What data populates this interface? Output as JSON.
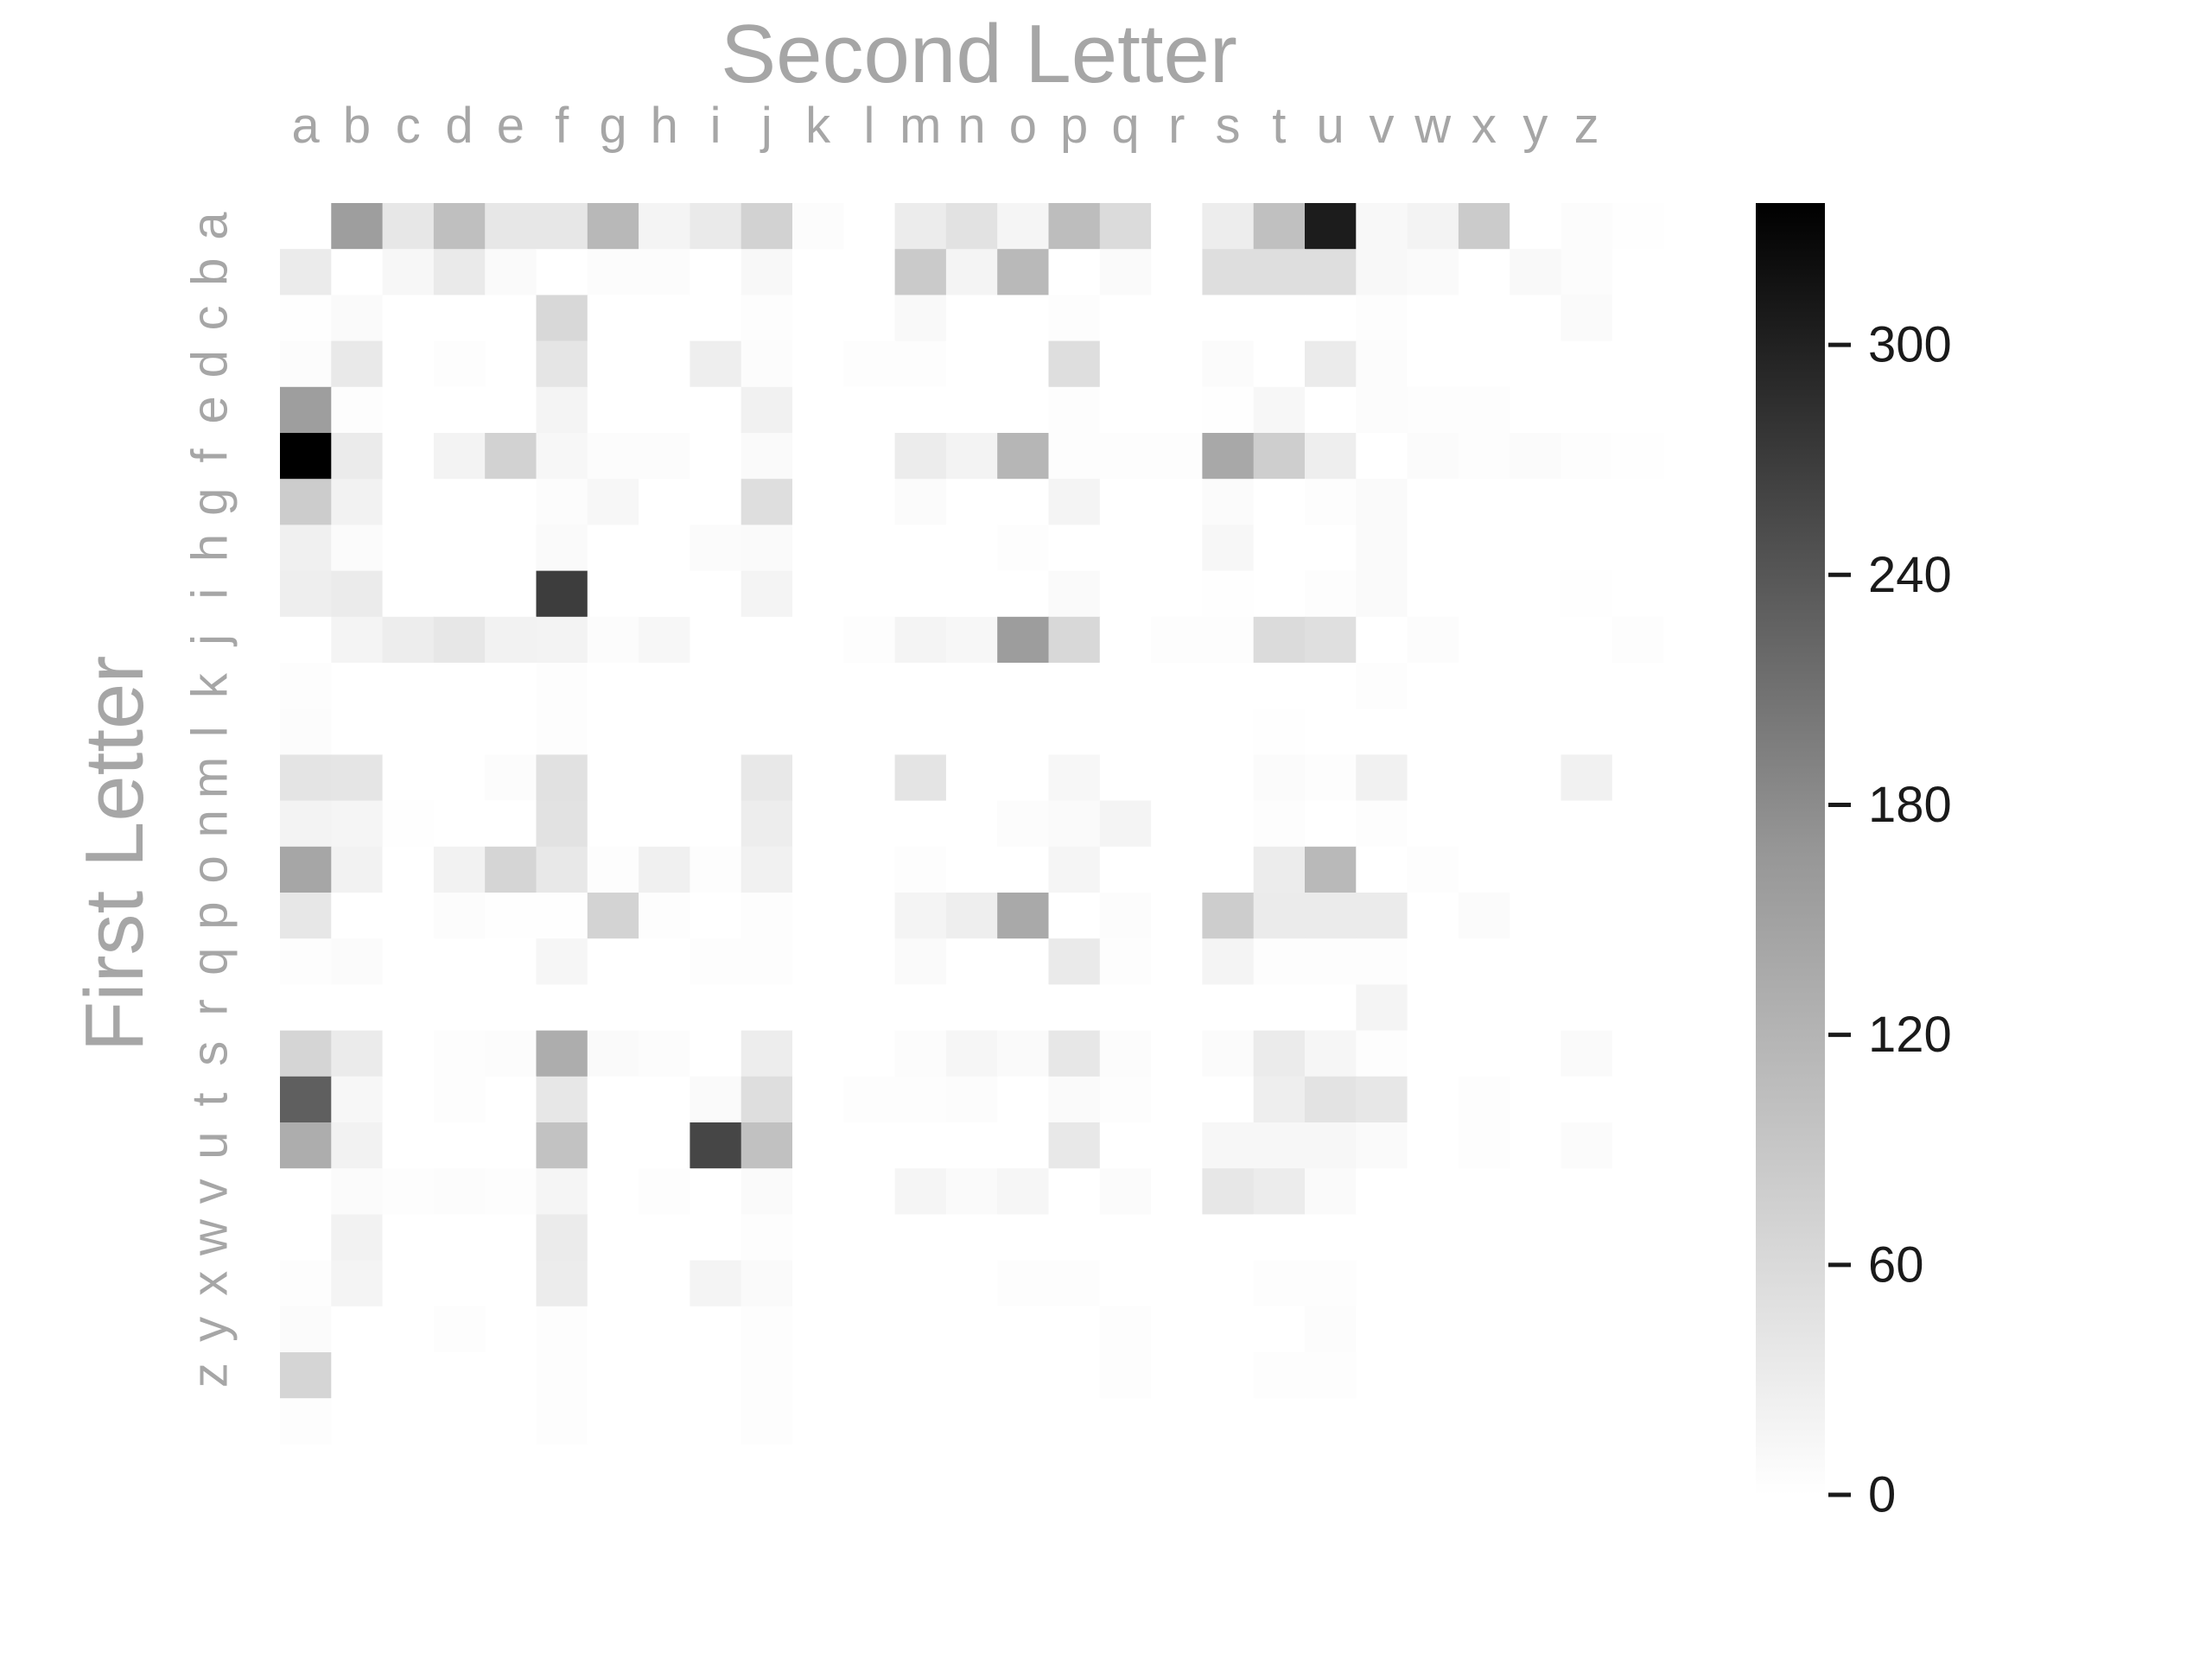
{
  "chart_data": {
    "type": "heatmap",
    "title": "",
    "xlabel": "Second Letter",
    "ylabel": "First Letter",
    "x_categories": [
      "",
      "a",
      "b",
      "c",
      "d",
      "e",
      "f",
      "g",
      "h",
      "i",
      "j",
      "k",
      "l",
      "m",
      "n",
      "o",
      "p",
      "q",
      "r",
      "s",
      "t",
      "u",
      "v",
      "w",
      "x",
      "y",
      "z"
    ],
    "y_categories": [
      "",
      "a",
      "b",
      "c",
      "d",
      "e",
      "f",
      "g",
      "h",
      "i",
      "j",
      "k",
      "l",
      "m",
      "n",
      "o",
      "p",
      "q",
      "r",
      "s",
      "t",
      "u",
      "v",
      "w",
      "x",
      "y",
      "z"
    ],
    "colormap": "Greys",
    "vmin": 0,
    "vmax": 337,
    "colorbar": {
      "ticks": [
        0,
        60,
        120,
        180,
        240,
        300
      ],
      "tick_labels": [
        "0",
        "60",
        "120",
        "180",
        "240",
        "300"
      ]
    },
    "values": [
      [
        0,
        128,
        32,
        84,
        32,
        32,
        94,
        15,
        28,
        60,
        4,
        0,
        25,
        38,
        13,
        87,
        48,
        0,
        24,
        83,
        300,
        9,
        16,
        69,
        0,
        4,
        1
      ],
      [
        26,
        0,
        11,
        28,
        6,
        0,
        4,
        4,
        0,
        9,
        0,
        0,
        70,
        15,
        93,
        0,
        6,
        0,
        44,
        44,
        44,
        9,
        6,
        0,
        8,
        4,
        0
      ],
      [
        1,
        6,
        0,
        0,
        0,
        51,
        0,
        0,
        0,
        3,
        0,
        0,
        8,
        0,
        0,
        3,
        0,
        0,
        0,
        0,
        0,
        3,
        0,
        0,
        0,
        6,
        0
      ],
      [
        4,
        29,
        0,
        2,
        0,
        34,
        0,
        0,
        22,
        4,
        0,
        3,
        3,
        0,
        0,
        43,
        0,
        0,
        5,
        0,
        27,
        4,
        0,
        0,
        0,
        0,
        0
      ],
      [
        128,
        2,
        0,
        0,
        0,
        15,
        0,
        0,
        0,
        18,
        0,
        0,
        0,
        0,
        0,
        3,
        0,
        0,
        1,
        11,
        0,
        4,
        2,
        2,
        0,
        0,
        0
      ],
      [
        337,
        27,
        0,
        16,
        60,
        11,
        4,
        4,
        0,
        6,
        0,
        0,
        25,
        16,
        96,
        2,
        2,
        2,
        115,
        65,
        22,
        0,
        5,
        3,
        5,
        2,
        1
      ],
      [
        68,
        17,
        0,
        0,
        0,
        4,
        10,
        0,
        0,
        44,
        0,
        0,
        5,
        0,
        0,
        14,
        0,
        0,
        5,
        0,
        3,
        6,
        0,
        0,
        0,
        0,
        0
      ],
      [
        20,
        5,
        0,
        0,
        0,
        6,
        0,
        0,
        5,
        6,
        0,
        0,
        0,
        0,
        2,
        0,
        0,
        0,
        10,
        0,
        0,
        6,
        0,
        0,
        0,
        0,
        0
      ],
      [
        23,
        26,
        0,
        0,
        0,
        256,
        0,
        0,
        0,
        15,
        0,
        0,
        0,
        0,
        0,
        6,
        0,
        0,
        1,
        0,
        3,
        6,
        0,
        0,
        0,
        1,
        0
      ],
      [
        0,
        15,
        24,
        32,
        17,
        16,
        4,
        10,
        0,
        0,
        0,
        2,
        15,
        10,
        130,
        51,
        0,
        3,
        3,
        48,
        42,
        0,
        4,
        0,
        0,
        0,
        2
      ],
      [
        2,
        0,
        0,
        0,
        0,
        2,
        0,
        0,
        0,
        0,
        0,
        0,
        0,
        0,
        0,
        0,
        0,
        0,
        0,
        0,
        0,
        2,
        0,
        0,
        0,
        0,
        0
      ],
      [
        4,
        0,
        0,
        0,
        0,
        2,
        0,
        0,
        0,
        0,
        0,
        0,
        0,
        0,
        0,
        0,
        0,
        0,
        0,
        1,
        0,
        0,
        0,
        0,
        0,
        0,
        0
      ],
      [
        36,
        34,
        0,
        0,
        4,
        40,
        0,
        0,
        0,
        30,
        0,
        0,
        36,
        0,
        0,
        10,
        0,
        0,
        0,
        5,
        2,
        19,
        0,
        0,
        0,
        18,
        0
      ],
      [
        16,
        13,
        1,
        0,
        0,
        38,
        0,
        0,
        0,
        24,
        0,
        0,
        0,
        0,
        4,
        6,
        15,
        0,
        0,
        2,
        0,
        3,
        0,
        0,
        0,
        0,
        0
      ],
      [
        118,
        17,
        0,
        17,
        55,
        30,
        2,
        20,
        3,
        18,
        0,
        0,
        2,
        0,
        0,
        13,
        0,
        0,
        0,
        25,
        92,
        0,
        2,
        0,
        0,
        0,
        0
      ],
      [
        32,
        0,
        0,
        4,
        1,
        1,
        58,
        2,
        0,
        2,
        0,
        0,
        15,
        22,
        114,
        0,
        4,
        0,
        66,
        27,
        27,
        27,
        0,
        5,
        0,
        0,
        0
      ],
      [
        3,
        5,
        0,
        0,
        0,
        12,
        0,
        0,
        3,
        3,
        0,
        0,
        7,
        0,
        0,
        28,
        2,
        0,
        14,
        3,
        3,
        3,
        0,
        0,
        0,
        0,
        0
      ],
      [
        0,
        0,
        0,
        0,
        0,
        0,
        0,
        0,
        0,
        0,
        0,
        0,
        0,
        0,
        0,
        0,
        0,
        0,
        0,
        0,
        0,
        15,
        0,
        0,
        0,
        0,
        0
      ],
      [
        55,
        26,
        0,
        2,
        4,
        108,
        6,
        4,
        0,
        24,
        0,
        0,
        4,
        12,
        6,
        32,
        4,
        0,
        5,
        26,
        12,
        3,
        0,
        0,
        0,
        6,
        0
      ],
      [
        212,
        10,
        0,
        3,
        0,
        32,
        0,
        0,
        6,
        44,
        0,
        2,
        3,
        4,
        0,
        6,
        2,
        0,
        0,
        22,
        37,
        32,
        0,
        2,
        0,
        0,
        0
      ],
      [
        108,
        17,
        0,
        0,
        0,
        80,
        0,
        0,
        245,
        82,
        0,
        0,
        0,
        0,
        0,
        30,
        0,
        0,
        10,
        10,
        10,
        6,
        0,
        3,
        0,
        5,
        0
      ],
      [
        0,
        5,
        3,
        4,
        2,
        13,
        0,
        3,
        0,
        6,
        0,
        0,
        13,
        6,
        12,
        0,
        5,
        0,
        32,
        25,
        7,
        0,
        0,
        0,
        0,
        0,
        0
      ],
      [
        0,
        17,
        0,
        0,
        0,
        26,
        0,
        0,
        0,
        3,
        0,
        0,
        0,
        0,
        0,
        0,
        0,
        0,
        0,
        0,
        0,
        0,
        0,
        0,
        0,
        0,
        0
      ],
      [
        3,
        15,
        0,
        0,
        0,
        25,
        0,
        0,
        14,
        7,
        0,
        0,
        0,
        0,
        2,
        3,
        0,
        0,
        0,
        2,
        2,
        0,
        0,
        0,
        0,
        0,
        0
      ],
      [
        5,
        0,
        0,
        2,
        0,
        2,
        0,
        0,
        0,
        3,
        0,
        0,
        0,
        0,
        0,
        0,
        2,
        0,
        0,
        0,
        4,
        0,
        0,
        0,
        0,
        0,
        0
      ],
      [
        55,
        0,
        0,
        0,
        0,
        3,
        0,
        0,
        0,
        2,
        0,
        0,
        0,
        0,
        0,
        0,
        2,
        0,
        0,
        2,
        2,
        0,
        0,
        0,
        0,
        0,
        0
      ],
      [
        2,
        0,
        0,
        0,
        0,
        2,
        0,
        0,
        0,
        2,
        0,
        0,
        0,
        0,
        0,
        0,
        0,
        0,
        0,
        0,
        0,
        0,
        0,
        0,
        0,
        0,
        0
      ]
    ]
  }
}
